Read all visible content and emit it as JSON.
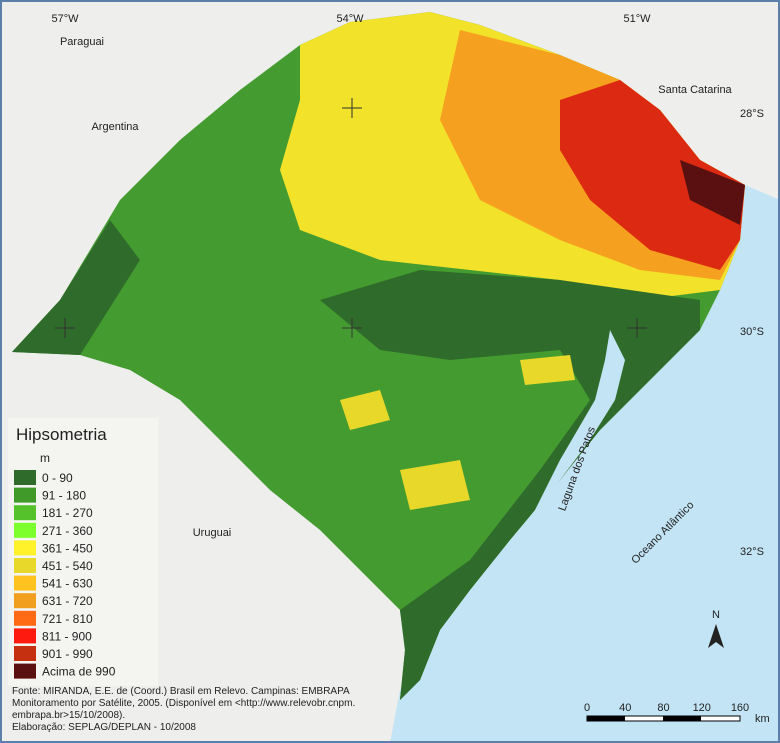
{
  "coordinates": {
    "longitudes": [
      "57°W",
      "54°W",
      "51°W"
    ],
    "latitudes": [
      "28°S",
      "30°S",
      "32°S"
    ]
  },
  "places": [
    "Paraguai",
    "Argentina",
    "Santa Catarina",
    "Uruguai",
    "Laguna dos Patos",
    "Oceano Atlântico"
  ],
  "legend": {
    "title": "Hipsometria",
    "unit": "m",
    "items": [
      {
        "label": "0 - 90",
        "color": "#2f6b2a"
      },
      {
        "label": "91 - 180",
        "color": "#3f9a2a"
      },
      {
        "label": "181 - 270",
        "color": "#55c22c"
      },
      {
        "label": "271 - 360",
        "color": "#7dff2e"
      },
      {
        "label": "361 - 450",
        "color": "#fff22a"
      },
      {
        "label": "451 - 540",
        "color": "#e8d82a"
      },
      {
        "label": "541 - 630",
        "color": "#ffc21e"
      },
      {
        "label": "631 - 720",
        "color": "#f0a01e"
      },
      {
        "label": "721 - 810",
        "color": "#ff6a14"
      },
      {
        "label": "811 - 900",
        "color": "#ff1a10"
      },
      {
        "label": "901 - 990",
        "color": "#c43010"
      },
      {
        "label": "Acima de 990",
        "color": "#5a1010"
      }
    ]
  },
  "source": [
    "Fonte: MIRANDA, E.E. de (Coord.) Brasil em Relevo. Campinas: EMBRAPA",
    "Monitoramento por Satélite, 2005. (Disponível em <http://www.relevobr.cnpm.",
    "embrapa.br>15/10/2008).",
    "Elaboração: SEPLAG/DEPLAN - 10/2008"
  ],
  "scale": {
    "ticks": [
      "0",
      "40",
      "80",
      "120",
      "160"
    ],
    "unit": "km"
  },
  "north": "N"
}
